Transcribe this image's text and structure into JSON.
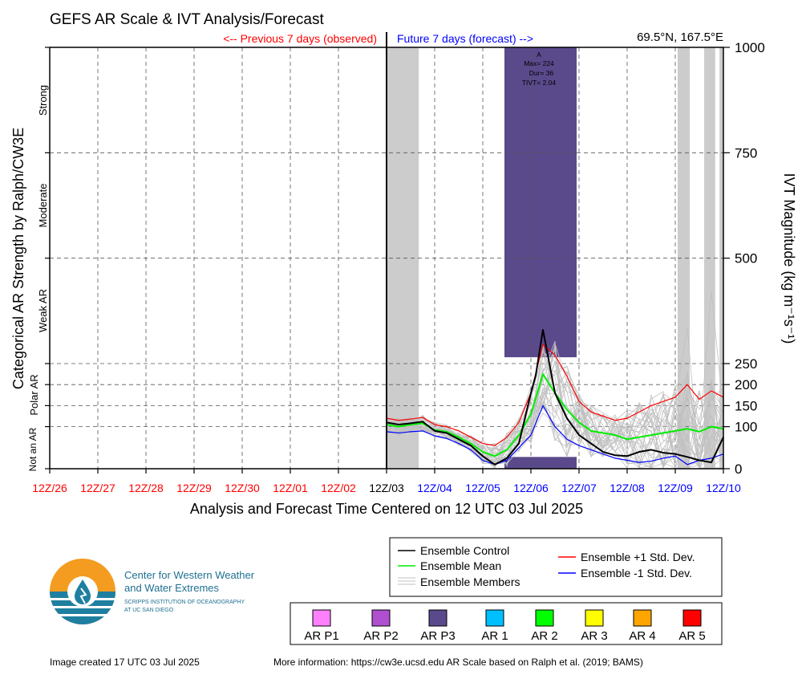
{
  "header": {
    "title": "GEFS AR Scale & IVT Analysis/Forecast",
    "prev_label": "<-- Previous 7 days (observed)",
    "future_label": "Future 7 days (forecast) -->",
    "location": "69.5°N, 167.5°E"
  },
  "axes": {
    "xlabel": "Analysis and Forecast Time Centered on 12 UTC 03 Jul 2025",
    "ylabel_left": "Categorical AR Strength by Ralph/CW3E",
    "ylabel_right": "IVT Magnitude (kg m⁻¹s⁻¹)",
    "categories": [
      "Strong",
      "Moderate",
      "Weak AR",
      "Polar AR",
      "Not an AR"
    ],
    "ticks_right": [
      "0",
      "100",
      "150",
      "200",
      "250",
      "500",
      "750",
      "1000"
    ],
    "ticks_x": [
      "12Z/26",
      "12Z/27",
      "12Z/28",
      "12Z/29",
      "12Z/30",
      "12Z/01",
      "12Z/02",
      "12Z/03",
      "12Z/04",
      "12Z/05",
      "12Z/06",
      "12Z/07",
      "12Z/08",
      "12Z/09",
      "12Z/10"
    ]
  },
  "annotation": {
    "a": "A",
    "max": "Max= 224",
    "dur": "Dur= 36",
    "tivt": "TIVT= 2.04"
  },
  "legend": {
    "control": "Ensemble Control",
    "mean": "Ensemble Mean",
    "members": "Ensemble Members",
    "plus": "Ensemble +1 Std. Dev.",
    "minus": "Ensemble -1 Std. Dev."
  },
  "ar_legend": [
    {
      "label": "AR P1",
      "color": "#ff80ff"
    },
    {
      "label": "AR P2",
      "color": "#b04fd0"
    },
    {
      "label": "AR P3",
      "color": "#5a4a8c"
    },
    {
      "label": "AR 1",
      "color": "#00bfff"
    },
    {
      "label": "AR 2",
      "color": "#00ff00"
    },
    {
      "label": "AR 3",
      "color": "#ffff00"
    },
    {
      "label": "AR 4",
      "color": "#ffa500"
    },
    {
      "label": "AR 5",
      "color": "#ff0000"
    }
  ],
  "logo": {
    "line1": "Center for Western Weather",
    "line2": "and Water Extremes",
    "sub1": "SCRIPPS INSTITUTION OF OCEANOGRAPHY",
    "sub2": "AT UC SAN DIEGO"
  },
  "footer": {
    "created": "Image created 17 UTC 03 Jul 2025",
    "info": "More information: https://cw3e.ucsd.edu AR Scale based on Ralph et al. (2019; BAMS)"
  },
  "colors": {
    "observed": "#ff0000",
    "forecast": "#0000ff",
    "control": "#000000",
    "mean": "#00ee00",
    "plus": "#ff0000",
    "minus": "#0000ff",
    "members": "#c0c0c0",
    "ar_p3": "#5a4a8c",
    "shade": "#cccccc"
  },
  "chart_data": {
    "type": "line",
    "x_unit": "days relative to 12Z/03 Jul 2025",
    "xlim": [
      -7,
      7
    ],
    "ylim": [
      0,
      1000
    ],
    "y_scale": "piecewise: 0-250 expanded, 250-1000 compressed",
    "grid": true,
    "gray_periods": [
      [
        0,
        0.67
      ],
      [
        6.05,
        6.3
      ],
      [
        6.6,
        6.83
      ],
      [
        6.92,
        7
      ]
    ],
    "ar_p3_period": [
      2.45,
      3.95
    ],
    "series": [
      {
        "name": "Ensemble Control",
        "x": [
          0,
          0.25,
          0.5,
          0.75,
          1,
          1.25,
          1.5,
          1.75,
          2,
          2.25,
          2.5,
          2.75,
          3,
          3.1,
          3.25,
          3.5,
          3.75,
          4,
          4.25,
          4.5,
          4.75,
          5,
          5.25,
          5.5,
          5.75,
          6,
          6.25,
          6.5,
          6.75,
          7
        ],
        "values": [
          110,
          105,
          108,
          112,
          90,
          85,
          70,
          55,
          30,
          10,
          25,
          60,
          180,
          222,
          330,
          180,
          120,
          80,
          60,
          40,
          32,
          30,
          40,
          45,
          38,
          35,
          28,
          20,
          15,
          75
        ]
      },
      {
        "name": "Ensemble Mean",
        "x": [
          0,
          0.25,
          0.5,
          0.75,
          1,
          1.25,
          1.5,
          1.75,
          2,
          2.25,
          2.5,
          2.75,
          3,
          3.25,
          3.5,
          3.75,
          4,
          4.25,
          4.5,
          4.75,
          5,
          5.25,
          5.5,
          5.75,
          6,
          6.25,
          6.5,
          6.75,
          7
        ],
        "values": [
          105,
          100,
          105,
          108,
          92,
          88,
          75,
          60,
          40,
          30,
          45,
          80,
          130,
          225,
          180,
          140,
          110,
          90,
          85,
          80,
          70,
          75,
          80,
          85,
          90,
          95,
          88,
          100,
          95
        ]
      },
      {
        "name": "Ensemble +1 Std. Dev.",
        "x": [
          0,
          0.25,
          0.5,
          0.75,
          1,
          1.25,
          1.5,
          1.75,
          2,
          2.25,
          2.5,
          2.75,
          3,
          3.25,
          3.5,
          3.75,
          4,
          4.25,
          4.5,
          4.75,
          5,
          5.25,
          5.5,
          5.75,
          6,
          6.25,
          6.5,
          6.75,
          7
        ],
        "values": [
          120,
          115,
          118,
          122,
          105,
          100,
          90,
          75,
          60,
          55,
          75,
          110,
          180,
          295,
          270,
          220,
          160,
          135,
          125,
          115,
          120,
          135,
          150,
          160,
          170,
          200,
          165,
          185,
          170
        ]
      },
      {
        "name": "Ensemble -1 Std. Dev.",
        "x": [
          0,
          0.25,
          0.5,
          0.75,
          1,
          1.25,
          1.5,
          1.75,
          2,
          2.25,
          2.5,
          2.75,
          3,
          3.25,
          3.5,
          3.75,
          4,
          4.25,
          4.5,
          4.75,
          5,
          5.25,
          5.5,
          5.75,
          6,
          6.25,
          6.5,
          6.75,
          7
        ],
        "values": [
          88,
          85,
          88,
          90,
          78,
          72,
          60,
          45,
          20,
          10,
          20,
          50,
          80,
          150,
          100,
          70,
          55,
          45,
          35,
          25,
          20,
          15,
          18,
          25,
          30,
          10,
          20,
          25,
          35
        ]
      }
    ]
  }
}
